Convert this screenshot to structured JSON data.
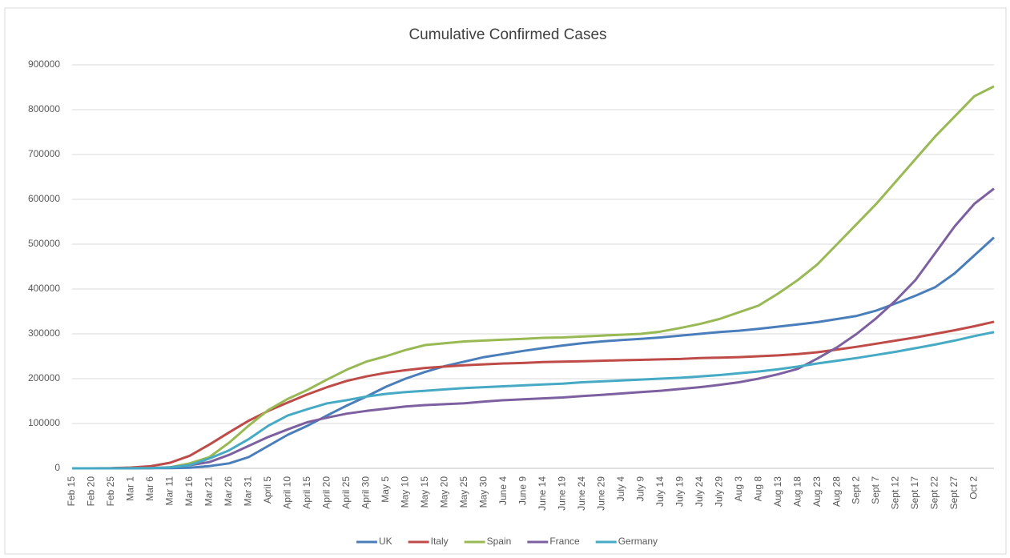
{
  "chart_data": {
    "type": "line",
    "title": "Cumulative Confirmed Cases",
    "categories": [
      "Feb 15",
      "Feb 20",
      "Feb 25",
      "Mar 1",
      "Mar 6",
      "Mar 11",
      "Mar 16",
      "Mar 21",
      "Mar 26",
      "Mar 31",
      "April 5",
      "April 10",
      "April 15",
      "April 20",
      "April 25",
      "April 30",
      "May 5",
      "May 10",
      "May 15",
      "May 20",
      "May 25",
      "May 30",
      "June 4",
      "June 9",
      "June 14",
      "June 19",
      "June 24",
      "June 29",
      "July 4",
      "July 9",
      "July 14",
      "July 19",
      "July 24",
      "July 29",
      "Aug 3",
      "Aug 8",
      "Aug 13",
      "Aug 18",
      "Aug 23",
      "Aug 28",
      "Sept 2",
      "Sept 7",
      "Sept 12",
      "Sept 17",
      "Sept 22",
      "Sept 27",
      "Oct 2",
      null
    ],
    "series": [
      {
        "name": "UK",
        "color": "#4a7ebb",
        "values": [
          0,
          0,
          0,
          100,
          300,
          600,
          1500,
          5000,
          11000,
          25000,
          50000,
          75000,
          95000,
          118000,
          140000,
          160000,
          182000,
          200000,
          215000,
          228000,
          238000,
          248000,
          255000,
          262000,
          268000,
          274000,
          279000,
          283000,
          286000,
          289000,
          292000,
          296000,
          300000,
          304000,
          307000,
          311000,
          316000,
          321000,
          326000,
          333000,
          340000,
          352000,
          368000,
          385000,
          404000,
          435000,
          475000,
          515000
        ]
      },
      {
        "name": "Italy",
        "color": "#be4b48",
        "values": [
          0,
          0,
          300,
          1700,
          4600,
          12500,
          28000,
          53000,
          80000,
          106000,
          128000,
          147000,
          165000,
          181000,
          195000,
          205000,
          213000,
          219000,
          224000,
          227000,
          230000,
          232000,
          234000,
          235000,
          237000,
          238000,
          239000,
          240000,
          241000,
          242000,
          243000,
          244000,
          246000,
          247000,
          248000,
          250000,
          252000,
          255000,
          259000,
          265000,
          271000,
          278000,
          285000,
          292000,
          300000,
          308000,
          317000,
          327000
        ]
      },
      {
        "name": "Spain",
        "color": "#98b954",
        "values": [
          0,
          0,
          0,
          100,
          400,
          2300,
          11000,
          25000,
          57000,
          95000,
          130000,
          155000,
          175000,
          198000,
          220000,
          238000,
          250000,
          264000,
          275000,
          279000,
          283000,
          285000,
          287000,
          289000,
          291000,
          292000,
          294000,
          296000,
          298000,
          300000,
          305000,
          313000,
          322000,
          333000,
          348000,
          363000,
          390000,
          420000,
          455000,
          500000,
          545000,
          590000,
          640000,
          690000,
          740000,
          785000,
          830000,
          852000
        ]
      },
      {
        "name": "France",
        "color": "#7d60a0",
        "values": [
          0,
          0,
          0,
          100,
          400,
          2200,
          7000,
          14000,
          30000,
          50000,
          70000,
          87000,
          103000,
          113000,
          122000,
          128000,
          133000,
          138000,
          141000,
          143000,
          145000,
          149000,
          152000,
          154000,
          156000,
          158000,
          161000,
          164000,
          167000,
          170000,
          173000,
          177000,
          181000,
          186000,
          192000,
          200000,
          210000,
          222000,
          245000,
          270000,
          300000,
          335000,
          375000,
          420000,
          480000,
          540000,
          590000,
          624000
        ]
      },
      {
        "name": "Germany",
        "color": "#46aac5",
        "values": [
          0,
          0,
          0,
          100,
          600,
          1900,
          7000,
          22000,
          40000,
          65000,
          95000,
          118000,
          132000,
          145000,
          152000,
          160000,
          166000,
          170000,
          173000,
          176000,
          179000,
          181000,
          183000,
          185000,
          187000,
          189000,
          192000,
          194000,
          196000,
          198000,
          200000,
          202000,
          205000,
          208000,
          212000,
          216000,
          221000,
          227000,
          234000,
          240000,
          246000,
          253000,
          260000,
          268000,
          276000,
          285000,
          295000,
          304000
        ]
      }
    ],
    "ylim": [
      0,
      900000
    ],
    "yticks": [
      0,
      100000,
      200000,
      300000,
      400000,
      500000,
      600000,
      700000,
      800000,
      900000
    ],
    "grid": true,
    "legend": "bottom"
  }
}
